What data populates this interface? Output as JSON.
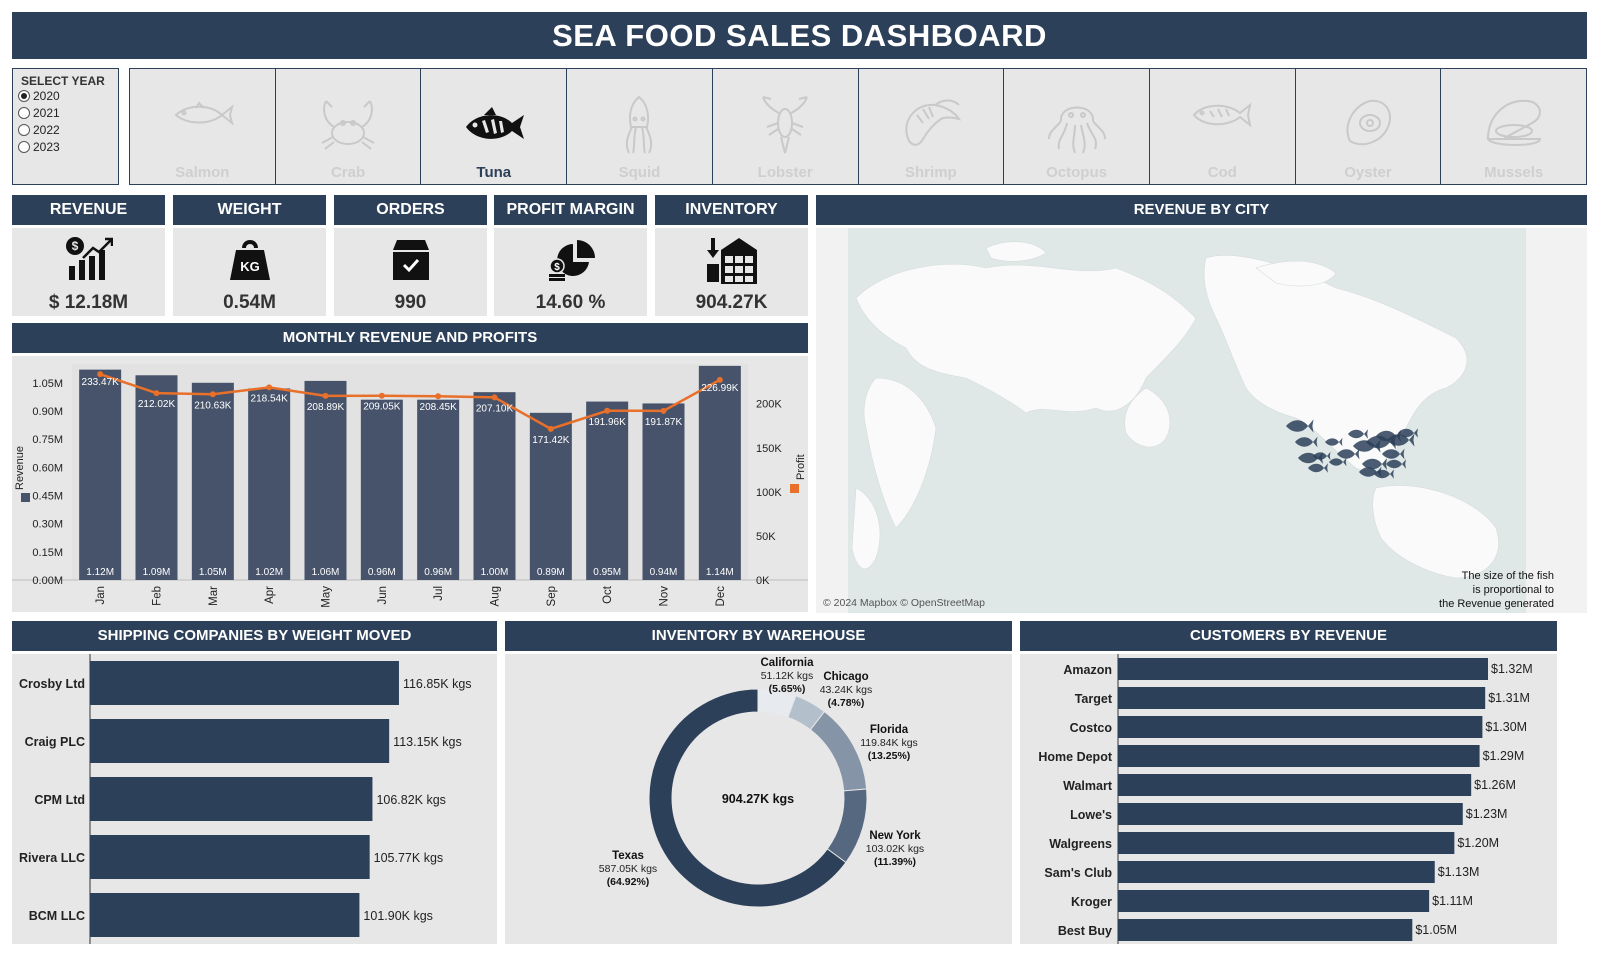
{
  "title": "SEA FOOD SALES DASHBOARD",
  "year_selector": {
    "label": "SELECT YEAR",
    "options": [
      "2020",
      "2021",
      "2022",
      "2023"
    ],
    "selected": "2020"
  },
  "species": [
    {
      "name": "Salmon",
      "icon": "salmon-icon",
      "selected": false
    },
    {
      "name": "Crab",
      "icon": "crab-icon",
      "selected": false
    },
    {
      "name": "Tuna",
      "icon": "tuna-icon",
      "selected": true
    },
    {
      "name": "Squid",
      "icon": "squid-icon",
      "selected": false
    },
    {
      "name": "Lobster",
      "icon": "lobster-icon",
      "selected": false
    },
    {
      "name": "Shrimp",
      "icon": "shrimp-icon",
      "selected": false
    },
    {
      "name": "Octopus",
      "icon": "octopus-icon",
      "selected": false
    },
    {
      "name": "Cod",
      "icon": "cod-icon",
      "selected": false
    },
    {
      "name": "Oyster",
      "icon": "oyster-icon",
      "selected": false
    },
    {
      "name": "Mussels",
      "icon": "mussels-icon",
      "selected": false
    }
  ],
  "kpis": [
    {
      "label": "REVENUE",
      "value": "$ 12.18M",
      "icon": "revenue-chart-icon"
    },
    {
      "label": "WEIGHT",
      "value": "0.54M",
      "icon": "kg-weight-icon"
    },
    {
      "label": "ORDERS",
      "value": "990",
      "icon": "order-box-icon"
    },
    {
      "label": "PROFIT MARGIN",
      "value": "14.60 %",
      "icon": "profit-pie-icon"
    },
    {
      "label": "INVENTORY",
      "value": "904.27K",
      "icon": "warehouse-icon"
    }
  ],
  "colors": {
    "header": "#2d4059",
    "panel": "#e7e7e7",
    "bar": "#46536a",
    "profit_line": "#e8702a",
    "map_ocean": "#dfe7e7",
    "map_land": "#fafafa"
  },
  "map": {
    "title": "REVENUE BY CITY",
    "attribution": "© 2024 Mapbox © OpenStreetMap",
    "note": [
      "The size of the fish",
      "is proportional to",
      "the Revenue generated"
    ]
  },
  "chart_data": [
    {
      "id": "monthly",
      "type": "bar",
      "title": "MONTHLY REVENUE AND PROFITS",
      "categories": [
        "Jan",
        "Feb",
        "Mar",
        "Apr",
        "May",
        "Jun",
        "Jul",
        "Aug",
        "Sep",
        "Oct",
        "Nov",
        "Dec"
      ],
      "series": [
        {
          "name": "Revenue",
          "type": "bar",
          "axis": "left",
          "values": [
            1.12,
            1.09,
            1.05,
            1.02,
            1.06,
            0.96,
            0.96,
            1.0,
            0.89,
            0.95,
            0.94,
            1.14
          ],
          "labels": [
            "1.12M",
            "1.09M",
            "1.05M",
            "1.02M",
            "1.06M",
            "0.96M",
            "0.96M",
            "1.00M",
            "0.89M",
            "0.95M",
            "0.94M",
            "1.14M"
          ]
        },
        {
          "name": "Profit",
          "type": "line",
          "axis": "right",
          "values": [
            233.47,
            212.02,
            210.63,
            218.54,
            208.89,
            209.05,
            208.45,
            207.1,
            171.42,
            191.96,
            191.87,
            226.99
          ],
          "labels": [
            "233.47K",
            "212.02K",
            "210.63K",
            "218.54K",
            "208.89K",
            "209.05K",
            "208.45K",
            "207.10K",
            "171.42K",
            "191.96K",
            "191.87K",
            "226.99K"
          ]
        }
      ],
      "ylabel": "Revenue",
      "ylabel_right": "Profit",
      "ylim": [
        0,
        1.15
      ],
      "yticks": [
        "0.00M",
        "0.15M",
        "0.30M",
        "0.45M",
        "0.60M",
        "0.75M",
        "0.90M",
        "1.05M"
      ],
      "ytick_values": [
        0,
        0.15,
        0.3,
        0.45,
        0.6,
        0.75,
        0.9,
        1.05
      ],
      "ylim_right": [
        0,
        245
      ],
      "yticks_right": [
        "0K",
        "50K",
        "100K",
        "150K",
        "200K"
      ],
      "ytick_values_right": [
        0,
        50,
        100,
        150,
        200
      ]
    },
    {
      "id": "shipping",
      "type": "bar",
      "orientation": "horizontal",
      "title": "SHIPPING COMPANIES BY WEIGHT MOVED",
      "categories": [
        "Crosby Ltd",
        "Craig PLC",
        "CPM Ltd",
        "Rivera LLC",
        "BCM LLC"
      ],
      "values": [
        116.85,
        113.15,
        106.82,
        105.77,
        101.9
      ],
      "labels": [
        "116.85K kgs",
        "113.15K kgs",
        "106.82K kgs",
        "105.77K kgs",
        "101.90K kgs"
      ],
      "xlim": [
        0,
        118
      ]
    },
    {
      "id": "warehouse",
      "type": "pie",
      "title": "INVENTORY BY WAREHOUSE",
      "center_label": "904.27K kgs",
      "slices": [
        {
          "name": "California",
          "value": 51.12,
          "value_label": "51.12K kgs",
          "pct": "(5.65%)",
          "color": "#e7ebef"
        },
        {
          "name": "Chicago",
          "value": 43.24,
          "value_label": "43.24K kgs",
          "pct": "(4.78%)",
          "color": "#b3bfcb"
        },
        {
          "name": "Florida",
          "value": 119.84,
          "value_label": "119.84K kgs",
          "pct": "(13.25%)",
          "color": "#8594a6"
        },
        {
          "name": "New York",
          "value": 103.02,
          "value_label": "103.02K kgs",
          "pct": "(11.39%)",
          "color": "#566780"
        },
        {
          "name": "Texas",
          "value": 587.05,
          "value_label": "587.05K kgs",
          "pct": "(64.92%)",
          "color": "#2d4059"
        }
      ]
    },
    {
      "id": "customers",
      "type": "bar",
      "orientation": "horizontal",
      "title": "CUSTOMERS BY REVENUE",
      "categories": [
        "Amazon",
        "Target",
        "Costco",
        "Home Depot",
        "Walmart",
        "Lowe's",
        "Walgreens",
        "Sam's Club",
        "Kroger",
        "Best Buy"
      ],
      "values": [
        1.32,
        1.31,
        1.3,
        1.29,
        1.26,
        1.23,
        1.2,
        1.13,
        1.11,
        1.05
      ],
      "labels": [
        "$1.32M",
        "$1.31M",
        "$1.30M",
        "$1.29M",
        "$1.26M",
        "$1.23M",
        "$1.20M",
        "$1.13M",
        "$1.11M",
        "$1.05M"
      ],
      "xlim": [
        0,
        1.32
      ]
    }
  ]
}
